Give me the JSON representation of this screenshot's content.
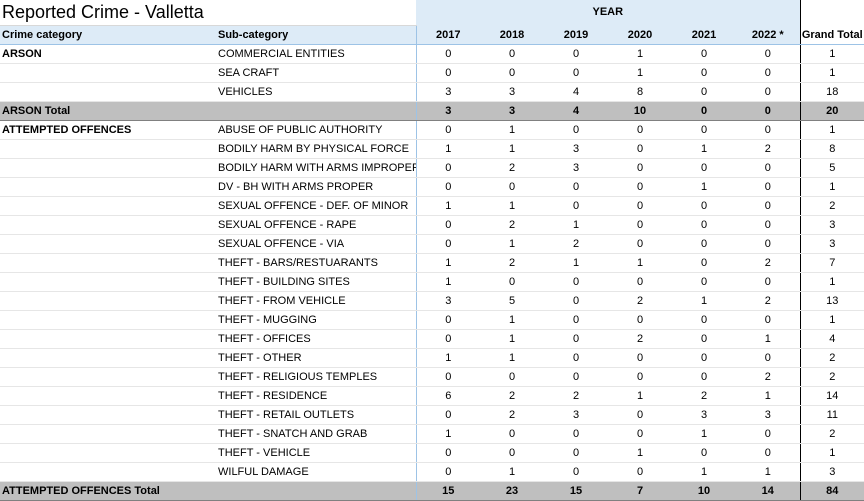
{
  "title": "Reported Crime - Valletta",
  "year_band_label": "YEAR",
  "headers": {
    "category": "Crime category",
    "subcategory": "Sub-category",
    "years": [
      "2017",
      "2018",
      "2019",
      "2020",
      "2021",
      "2022 *"
    ],
    "grand_total": "Grand Total"
  },
  "rows": [
    {
      "kind": "detail",
      "category": "ARSON",
      "subcategory": "COMMERCIAL ENTITIES",
      "values": [
        "0",
        "0",
        "0",
        "1",
        "0",
        "0"
      ],
      "total": "1"
    },
    {
      "kind": "detail",
      "category": "",
      "subcategory": "SEA CRAFT",
      "values": [
        "0",
        "0",
        "0",
        "1",
        "0",
        "0"
      ],
      "total": "1"
    },
    {
      "kind": "detail",
      "category": "",
      "subcategory": "VEHICLES",
      "values": [
        "3",
        "3",
        "4",
        "8",
        "0",
        "0"
      ],
      "total": "18"
    },
    {
      "kind": "total",
      "category": "ARSON Total",
      "subcategory": "",
      "values": [
        "3",
        "3",
        "4",
        "10",
        "0",
        "0"
      ],
      "total": "20"
    },
    {
      "kind": "detail",
      "category": "ATTEMPTED OFFENCES",
      "subcategory": "ABUSE OF PUBLIC AUTHORITY",
      "values": [
        "0",
        "1",
        "0",
        "0",
        "0",
        "0"
      ],
      "total": "1"
    },
    {
      "kind": "detail",
      "category": "",
      "subcategory": "BODILY HARM BY PHYSICAL FORCE",
      "values": [
        "1",
        "1",
        "3",
        "0",
        "1",
        "2"
      ],
      "total": "8"
    },
    {
      "kind": "detail",
      "category": "",
      "subcategory": "BODILY HARM WITH ARMS IMPROPER",
      "values": [
        "0",
        "2",
        "3",
        "0",
        "0",
        "0"
      ],
      "total": "5"
    },
    {
      "kind": "detail",
      "category": "",
      "subcategory": "DV - BH WITH ARMS PROPER",
      "values": [
        "0",
        "0",
        "0",
        "0",
        "1",
        "0"
      ],
      "total": "1"
    },
    {
      "kind": "detail",
      "category": "",
      "subcategory": "SEXUAL OFFENCE - DEF. OF MINOR",
      "values": [
        "1",
        "1",
        "0",
        "0",
        "0",
        "0"
      ],
      "total": "2"
    },
    {
      "kind": "detail",
      "category": "",
      "subcategory": "SEXUAL OFFENCE - RAPE",
      "values": [
        "0",
        "2",
        "1",
        "0",
        "0",
        "0"
      ],
      "total": "3"
    },
    {
      "kind": "detail",
      "category": "",
      "subcategory": "SEXUAL OFFENCE - VIA",
      "values": [
        "0",
        "1",
        "2",
        "0",
        "0",
        "0"
      ],
      "total": "3"
    },
    {
      "kind": "detail",
      "category": "",
      "subcategory": "THEFT - BARS/RESTUARANTS",
      "values": [
        "1",
        "2",
        "1",
        "1",
        "0",
        "2"
      ],
      "total": "7"
    },
    {
      "kind": "detail",
      "category": "",
      "subcategory": "THEFT - BUILDING SITES",
      "values": [
        "1",
        "0",
        "0",
        "0",
        "0",
        "0"
      ],
      "total": "1"
    },
    {
      "kind": "detail",
      "category": "",
      "subcategory": "THEFT - FROM VEHICLE",
      "values": [
        "3",
        "5",
        "0",
        "2",
        "1",
        "2"
      ],
      "total": "13"
    },
    {
      "kind": "detail",
      "category": "",
      "subcategory": "THEFT - MUGGING",
      "values": [
        "0",
        "1",
        "0",
        "0",
        "0",
        "0"
      ],
      "total": "1"
    },
    {
      "kind": "detail",
      "category": "",
      "subcategory": "THEFT - OFFICES",
      "values": [
        "0",
        "1",
        "0",
        "2",
        "0",
        "1"
      ],
      "total": "4"
    },
    {
      "kind": "detail",
      "category": "",
      "subcategory": "THEFT - OTHER",
      "values": [
        "1",
        "1",
        "0",
        "0",
        "0",
        "0"
      ],
      "total": "2"
    },
    {
      "kind": "detail",
      "category": "",
      "subcategory": "THEFT - RELIGIOUS TEMPLES",
      "values": [
        "0",
        "0",
        "0",
        "0",
        "0",
        "2"
      ],
      "total": "2"
    },
    {
      "kind": "detail",
      "category": "",
      "subcategory": "THEFT - RESIDENCE",
      "values": [
        "6",
        "2",
        "2",
        "1",
        "2",
        "1"
      ],
      "total": "14"
    },
    {
      "kind": "detail",
      "category": "",
      "subcategory": "THEFT - RETAIL OUTLETS",
      "values": [
        "0",
        "2",
        "3",
        "0",
        "3",
        "3"
      ],
      "total": "11"
    },
    {
      "kind": "detail",
      "category": "",
      "subcategory": "THEFT - SNATCH AND GRAB",
      "values": [
        "1",
        "0",
        "0",
        "0",
        "1",
        "0"
      ],
      "total": "2"
    },
    {
      "kind": "detail",
      "category": "",
      "subcategory": "THEFT - VEHICLE",
      "values": [
        "0",
        "0",
        "0",
        "1",
        "0",
        "0"
      ],
      "total": "1"
    },
    {
      "kind": "detail",
      "category": "",
      "subcategory": "WILFUL DAMAGE",
      "values": [
        "0",
        "1",
        "0",
        "0",
        "1",
        "1"
      ],
      "total": "3"
    },
    {
      "kind": "total",
      "category": "ATTEMPTED OFFENCES Total",
      "subcategory": "",
      "values": [
        "15",
        "23",
        "15",
        "7",
        "10",
        "14"
      ],
      "total": "84"
    }
  ]
}
